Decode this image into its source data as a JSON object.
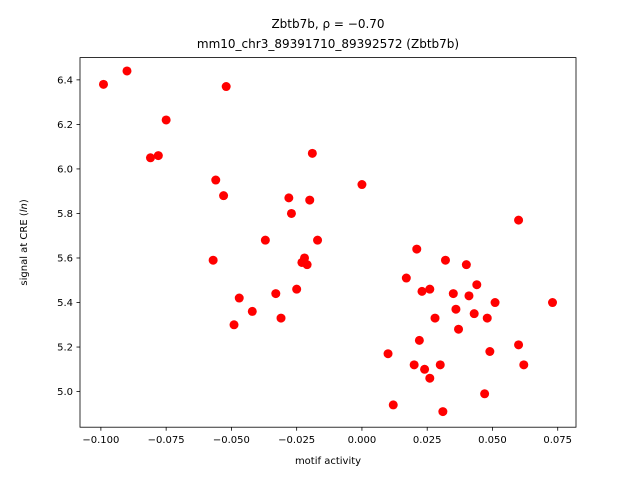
{
  "chart_data": {
    "type": "scatter",
    "title": "Zbtb7b, ρ = −0.70",
    "subtitle": "mm10_chr3_89391710_89392572 (Zbtb7b)",
    "xlabel": "motif activity",
    "ylabel": "signal at CRE (ln)",
    "ylabel_pre": "signal at CRE (",
    "ylabel_italic": "ln",
    "ylabel_post": ")",
    "marker_color": "#ff0000",
    "marker_radius": 4.5,
    "grid": false,
    "legend": "none",
    "xlim": [
      -0.108,
      0.082
    ],
    "ylim": [
      4.84,
      6.5
    ],
    "xticks": {
      "values": [
        -0.1,
        -0.075,
        -0.05,
        -0.025,
        0.0,
        0.025,
        0.05,
        0.075
      ],
      "labels": [
        "−0.100",
        "−0.075",
        "−0.050",
        "−0.025",
        "0.000",
        "0.025",
        "0.050",
        "0.075"
      ]
    },
    "yticks": {
      "values": [
        5.0,
        5.2,
        5.4,
        5.6,
        5.8,
        6.0,
        6.2,
        6.4
      ],
      "labels": [
        "5.0",
        "5.2",
        "5.4",
        "5.6",
        "5.8",
        "6.0",
        "6.2",
        "6.4"
      ]
    },
    "points": [
      [
        -0.099,
        6.38
      ],
      [
        -0.09,
        6.44
      ],
      [
        -0.081,
        6.05
      ],
      [
        -0.078,
        6.06
      ],
      [
        -0.075,
        6.22
      ],
      [
        -0.052,
        6.37
      ],
      [
        -0.056,
        5.95
      ],
      [
        -0.053,
        5.88
      ],
      [
        -0.057,
        5.59
      ],
      [
        -0.047,
        5.42
      ],
      [
        -0.049,
        5.3
      ],
      [
        -0.042,
        5.36
      ],
      [
        -0.037,
        5.68
      ],
      [
        -0.033,
        5.44
      ],
      [
        -0.031,
        5.33
      ],
      [
        -0.028,
        5.87
      ],
      [
        -0.027,
        5.8
      ],
      [
        -0.025,
        5.46
      ],
      [
        -0.022,
        5.6
      ],
      [
        -0.021,
        5.57
      ],
      [
        -0.02,
        5.86
      ],
      [
        -0.019,
        6.07
      ],
      [
        -0.017,
        5.68
      ],
      [
        -0.023,
        5.58
      ],
      [
        0.0,
        5.93
      ],
      [
        0.01,
        5.17
      ],
      [
        0.012,
        4.94
      ],
      [
        0.017,
        5.51
      ],
      [
        0.021,
        5.64
      ],
      [
        0.02,
        5.12
      ],
      [
        0.022,
        5.23
      ],
      [
        0.023,
        5.45
      ],
      [
        0.026,
        5.46
      ],
      [
        0.024,
        5.1
      ],
      [
        0.026,
        5.06
      ],
      [
        0.028,
        5.33
      ],
      [
        0.03,
        5.12
      ],
      [
        0.031,
        4.91
      ],
      [
        0.032,
        5.59
      ],
      [
        0.035,
        5.44
      ],
      [
        0.036,
        5.37
      ],
      [
        0.037,
        5.28
      ],
      [
        0.04,
        5.57
      ],
      [
        0.041,
        5.43
      ],
      [
        0.043,
        5.35
      ],
      [
        0.044,
        5.48
      ],
      [
        0.047,
        4.99
      ],
      [
        0.048,
        5.33
      ],
      [
        0.049,
        5.18
      ],
      [
        0.051,
        5.4
      ],
      [
        0.06,
        5.77
      ],
      [
        0.06,
        5.21
      ],
      [
        0.062,
        5.12
      ],
      [
        0.073,
        5.4
      ]
    ]
  }
}
